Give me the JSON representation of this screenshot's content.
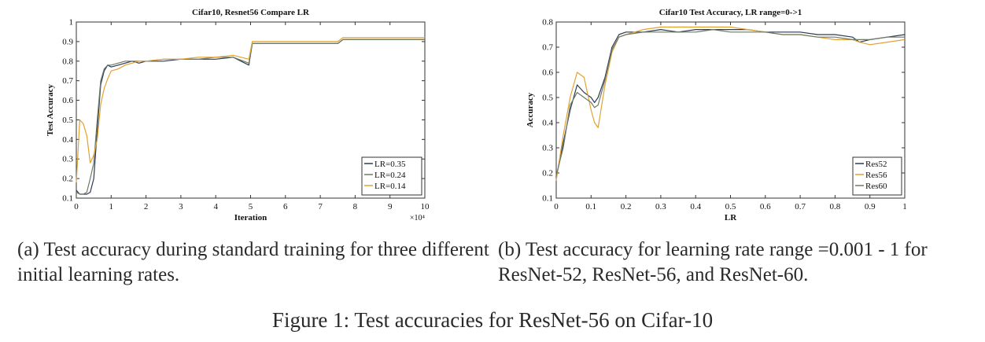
{
  "figure_caption": "Figure 1: Test accuracies for ResNet-56 on Cifar-10",
  "captions": {
    "a": "(a) Test accuracy during standard training for three different initial learning rates.",
    "b": "(b) Test accuracy for learning rate range =0.001 - 1 for ResNet-52, ResNet-56, and ResNet-60."
  },
  "chart_data": [
    {
      "type": "line",
      "title": "Cifar10, Resnet56 Compare LR",
      "xlabel": "Iteration",
      "ylabel": "Test Accuracy",
      "x_multiplier_label": "×10⁴",
      "xlim": [
        0,
        10
      ],
      "ylim": [
        0.1,
        1
      ],
      "xticks": [
        "0",
        "1",
        "2",
        "3",
        "4",
        "5",
        "6",
        "7",
        "8",
        "9",
        "10"
      ],
      "yticks": [
        "0.1",
        "0.2",
        "0.3",
        "0.4",
        "0.5",
        "0.6",
        "0.7",
        "0.8",
        "0.9",
        "1"
      ],
      "legend_position": "bottom-right",
      "x": [
        0,
        0.1,
        0.2,
        0.3,
        0.4,
        0.5,
        0.6,
        0.7,
        0.8,
        0.9,
        1.0,
        1.2,
        1.4,
        1.6,
        1.8,
        2.0,
        2.5,
        3.0,
        3.5,
        4.0,
        4.5,
        4.95,
        5.05,
        5.5,
        6.0,
        6.5,
        7.0,
        7.5,
        7.65,
        8.0,
        8.5,
        9.0,
        9.5,
        10.0
      ],
      "series": [
        {
          "name": "LR=0.35",
          "color": "#2b3a55",
          "values": [
            0.14,
            0.12,
            0.12,
            0.12,
            0.13,
            0.2,
            0.45,
            0.68,
            0.75,
            0.78,
            0.77,
            0.78,
            0.79,
            0.8,
            0.79,
            0.8,
            0.8,
            0.81,
            0.81,
            0.81,
            0.82,
            0.78,
            0.89,
            0.89,
            0.89,
            0.89,
            0.89,
            0.89,
            0.91,
            0.91,
            0.91,
            0.91,
            0.91,
            0.91
          ]
        },
        {
          "name": "LR=0.24",
          "color": "#6f7a63",
          "values": [
            0.13,
            0.12,
            0.12,
            0.13,
            0.2,
            0.28,
            0.5,
            0.7,
            0.76,
            0.78,
            0.78,
            0.79,
            0.8,
            0.8,
            0.8,
            0.8,
            0.81,
            0.81,
            0.81,
            0.82,
            0.82,
            0.79,
            0.89,
            0.89,
            0.89,
            0.89,
            0.89,
            0.89,
            0.91,
            0.91,
            0.91,
            0.91,
            0.91,
            0.91
          ]
        },
        {
          "name": "LR=0.14",
          "color": "#e0a232",
          "values": [
            0.18,
            0.5,
            0.48,
            0.42,
            0.28,
            0.32,
            0.4,
            0.58,
            0.66,
            0.71,
            0.75,
            0.76,
            0.78,
            0.79,
            0.8,
            0.8,
            0.81,
            0.81,
            0.82,
            0.82,
            0.83,
            0.81,
            0.9,
            0.9,
            0.9,
            0.9,
            0.9,
            0.9,
            0.92,
            0.92,
            0.92,
            0.92,
            0.92,
            0.92
          ]
        }
      ]
    },
    {
      "type": "line",
      "title": "Cifar10 Test Accuracy, LR range=0->1",
      "xlabel": "LR",
      "ylabel": "Accuracy",
      "xlim": [
        0,
        1
      ],
      "ylim": [
        0.1,
        0.8
      ],
      "xticks": [
        "0",
        "0.1",
        "0.2",
        "0.3",
        "0.4",
        "0.5",
        "0.6",
        "0.7",
        "0.8",
        "0.9",
        "1"
      ],
      "yticks": [
        "0.1",
        "0.2",
        "0.3",
        "0.4",
        "0.5",
        "0.6",
        "0.7",
        "0.8"
      ],
      "legend_position": "bottom-right",
      "x": [
        0,
        0.02,
        0.04,
        0.06,
        0.08,
        0.1,
        0.11,
        0.12,
        0.14,
        0.16,
        0.18,
        0.2,
        0.25,
        0.3,
        0.35,
        0.4,
        0.45,
        0.5,
        0.55,
        0.6,
        0.65,
        0.7,
        0.75,
        0.8,
        0.85,
        0.87,
        0.9,
        0.95,
        1.0
      ],
      "series": [
        {
          "name": "Res52",
          "color": "#2b3a55",
          "values": [
            0.18,
            0.32,
            0.45,
            0.55,
            0.52,
            0.5,
            0.48,
            0.5,
            0.58,
            0.7,
            0.75,
            0.76,
            0.76,
            0.77,
            0.76,
            0.77,
            0.77,
            0.77,
            0.77,
            0.76,
            0.76,
            0.76,
            0.75,
            0.75,
            0.74,
            0.72,
            0.73,
            0.74,
            0.75
          ]
        },
        {
          "name": "Res56",
          "color": "#e0a232",
          "values": [
            0.17,
            0.35,
            0.5,
            0.6,
            0.58,
            0.45,
            0.4,
            0.38,
            0.55,
            0.68,
            0.74,
            0.75,
            0.77,
            0.78,
            0.78,
            0.78,
            0.78,
            0.78,
            0.77,
            0.76,
            0.75,
            0.75,
            0.74,
            0.73,
            0.73,
            0.72,
            0.71,
            0.72,
            0.73
          ]
        },
        {
          "name": "Res60",
          "color": "#6f7a63",
          "values": [
            0.19,
            0.3,
            0.47,
            0.52,
            0.5,
            0.48,
            0.46,
            0.47,
            0.57,
            0.69,
            0.74,
            0.75,
            0.76,
            0.76,
            0.76,
            0.76,
            0.77,
            0.76,
            0.76,
            0.76,
            0.75,
            0.75,
            0.74,
            0.74,
            0.73,
            0.73,
            0.73,
            0.74,
            0.74
          ]
        }
      ]
    }
  ]
}
